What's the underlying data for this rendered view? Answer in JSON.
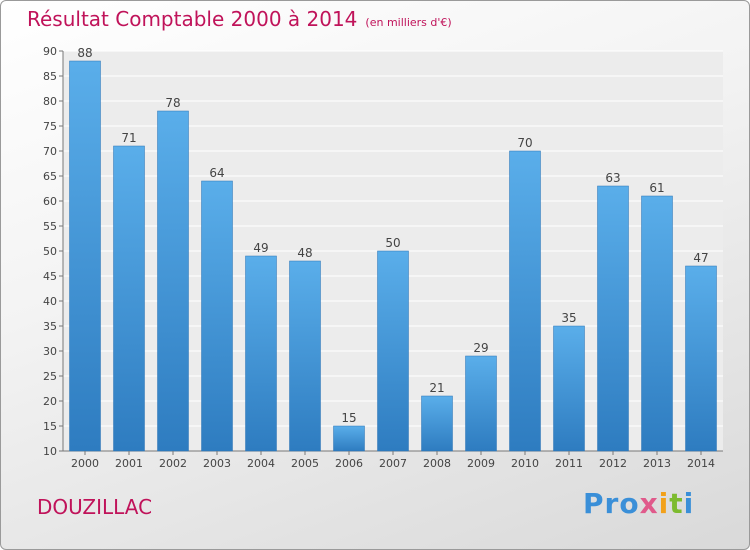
{
  "chart_data": {
    "type": "bar",
    "title": "Résultat Comptable 2000 à 2014",
    "unit_note": "(en milliers d'€)",
    "categories": [
      "2000",
      "2001",
      "2002",
      "2003",
      "2004",
      "2005",
      "2006",
      "2007",
      "2008",
      "2009",
      "2010",
      "2011",
      "2012",
      "2013",
      "2014"
    ],
    "values": [
      88,
      71,
      78,
      64,
      49,
      48,
      15,
      50,
      21,
      29,
      70,
      35,
      63,
      61,
      47
    ],
    "ylim": [
      10,
      90
    ],
    "yticks": [
      10,
      15,
      20,
      25,
      30,
      35,
      40,
      45,
      50,
      55,
      60,
      65,
      70,
      75,
      80,
      85,
      90
    ],
    "grid": true,
    "bar_color_top": "#5aaeea",
    "bar_color_bottom": "#2e7cc0"
  },
  "footer": {
    "town": "DOUZILLAC",
    "logo": [
      "Pro",
      "x",
      "i",
      "t",
      "i"
    ]
  }
}
